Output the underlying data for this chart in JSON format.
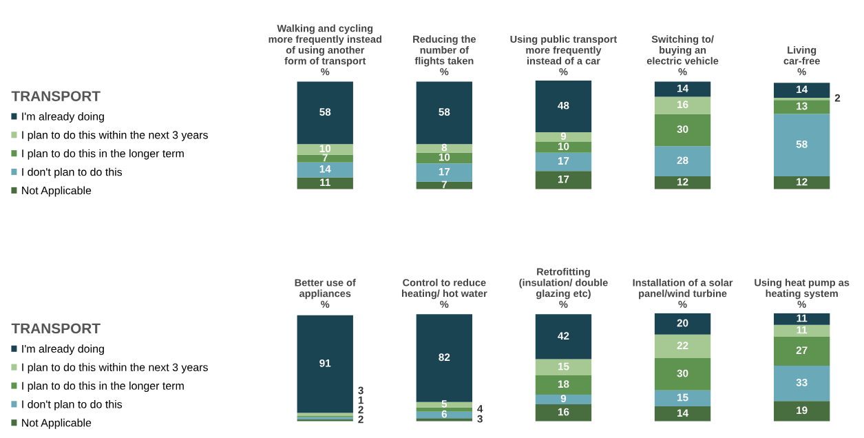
{
  "chart_data": [
    {
      "type": "bar",
      "legend_title": "TRANSPORT",
      "stacked": true,
      "data_labels": true,
      "legend": "left",
      "grid": false,
      "tick_labels": "x",
      "categories": [
        "Walking and cycling\nmore frequently instead\nof using another\nform of transport\n%",
        "Reducing the\nnumber of\nflights taken\n%",
        "Using public transport\nmore frequently\ninstead of a car\n%",
        "Switching to/\nbuying an\nelectric vehicle\n%",
        "Living\ncar-free\n%"
      ],
      "series": [
        {
          "name": "Not Applicable",
          "color": "#486e3f",
          "values": [
            11,
            7,
            17,
            12,
            12
          ]
        },
        {
          "name": "I don't plan to do this",
          "color": "#6aaab8",
          "values": [
            14,
            17,
            17,
            28,
            58
          ]
        },
        {
          "name": "I plan to do this in the longer term",
          "color": "#5f9350",
          "values": [
            7,
            10,
            10,
            30,
            13
          ]
        },
        {
          "name": "I plan to do this within the next 3 years",
          "color": "#a6c994",
          "values": [
            10,
            8,
            9,
            16,
            2
          ]
        },
        {
          "name": "I'm already doing",
          "color": "#1b4452",
          "values": [
            58,
            58,
            48,
            14,
            14
          ]
        }
      ]
    },
    {
      "type": "bar",
      "legend_title": "TRANSPORT",
      "stacked": true,
      "data_labels": true,
      "legend": "left",
      "grid": false,
      "tick_labels": "x",
      "categories": [
        "Better use of\nappliances\n%",
        "Control to reduce\nheating/ hot water\n%",
        "Retrofitting\n(insulation/ double\nglazing etc)\n%",
        "Installation of a solar\npanel/wind turbine\n%",
        "Using heat pump as\nheating system\n%"
      ],
      "series": [
        {
          "name": "Not Applicable",
          "color": "#486e3f",
          "values": [
            2,
            3,
            16,
            14,
            19
          ]
        },
        {
          "name": "I don't plan to do this",
          "color": "#6aaab8",
          "values": [
            2,
            6,
            9,
            15,
            33
          ]
        },
        {
          "name": "I plan to do this in the longer term",
          "color": "#5f9350",
          "values": [
            1,
            4,
            18,
            30,
            27
          ]
        },
        {
          "name": "I plan to do this within the next 3 years",
          "color": "#a6c994",
          "values": [
            3,
            5,
            15,
            22,
            11
          ]
        },
        {
          "name": "I'm already doing",
          "color": "#1b4452",
          "values": [
            91,
            82,
            42,
            20,
            11
          ]
        }
      ]
    }
  ]
}
